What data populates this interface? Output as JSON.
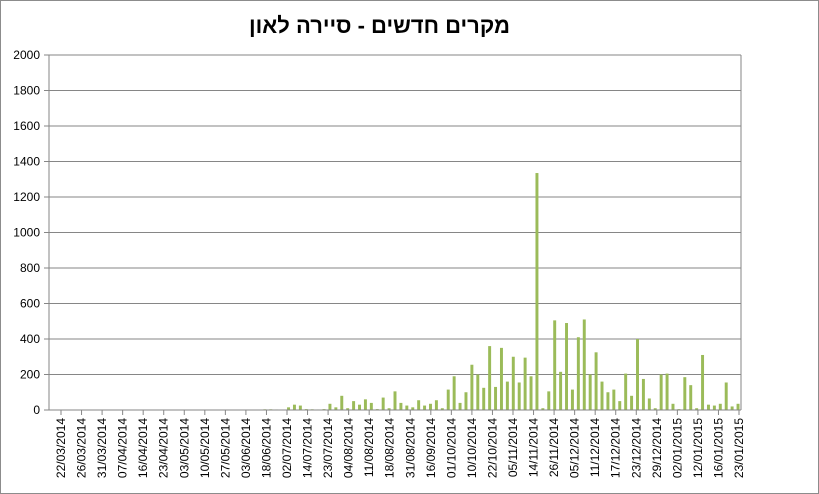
{
  "chart_data": {
    "type": "bar",
    "title": "מקרים חדשים - סיירה לאון",
    "xlabel": "",
    "ylabel": "",
    "ylim": [
      0,
      2000
    ],
    "yticks": [
      0,
      200,
      400,
      600,
      800,
      1000,
      1200,
      1400,
      1600,
      1800,
      2000
    ],
    "grid": true,
    "legend": "none",
    "bar_color": "#9bbb59",
    "x_tick_labels": [
      "22/03/2014",
      "26/03/2014",
      "31/03/2014",
      "07/04/2014",
      "16/04/2014",
      "23/04/2014",
      "03/05/2014",
      "10/05/2014",
      "27/05/2014",
      "03/06/2014",
      "18/06/2014",
      "02/07/2014",
      "14/07/2014",
      "23/07/2014",
      "04/08/2014",
      "11/08/2014",
      "18/08/2014",
      "31/08/2014",
      "16/09/2014",
      "01/10/2014",
      "10/10/2014",
      "22/10/2014",
      "05/11/2014",
      "14/11/2014",
      "26/11/2014",
      "05/12/2014",
      "11/12/2014",
      "17/12/2014",
      "23/12/2014",
      "29/12/2014",
      "02/01/2015",
      "12/01/2015",
      "16/01/2015",
      "23/01/2015"
    ],
    "values": [
      0,
      0,
      0,
      0,
      0,
      0,
      0,
      0,
      0,
      0,
      0,
      0,
      0,
      0,
      0,
      0,
      0,
      0,
      0,
      0,
      0,
      0,
      0,
      0,
      0,
      0,
      0,
      0,
      0,
      0,
      0,
      0,
      0,
      0,
      0,
      2,
      4,
      4,
      3,
      2,
      15,
      30,
      25,
      5,
      4,
      3,
      5,
      35,
      15,
      80,
      10,
      50,
      30,
      60,
      40,
      5,
      70,
      10,
      105,
      40,
      25,
      15,
      55,
      25,
      35,
      55,
      10,
      115,
      190,
      40,
      100,
      255,
      200,
      125,
      360,
      130,
      350,
      160,
      300,
      155,
      295,
      190,
      1335,
      10,
      105,
      505,
      215,
      490,
      115,
      410,
      510,
      200,
      325,
      160,
      100,
      115,
      50,
      205,
      80,
      400,
      175,
      65,
      10,
      200,
      205,
      35,
      5,
      185,
      140,
      10,
      310,
      30,
      25,
      35,
      155,
      20,
      35
    ]
  }
}
